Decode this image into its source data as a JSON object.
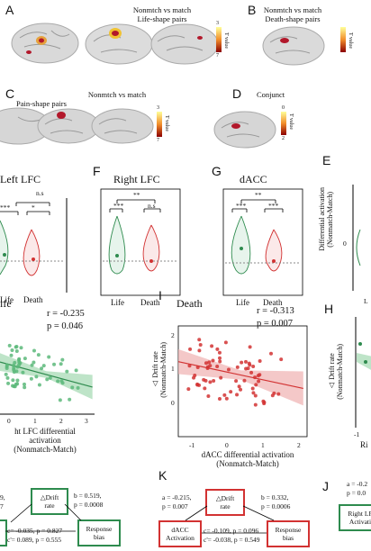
{
  "panels": {
    "A": {
      "label": "A",
      "title1": "Nonmtch vs match",
      "title2": "Life-shape pairs",
      "cb_top": "3",
      "cb_bot": "7",
      "cb_unit": "T value"
    },
    "B": {
      "label": "B",
      "title1": "Nonmtch vs match",
      "title2": "Death-shape pairs",
      "cb_unit": "T value"
    },
    "C": {
      "label": "C",
      "title1": "Nonmtch vs match",
      "title2": "Pain-shape pairs",
      "cb_top": "3",
      "cb_bot": "7",
      "cb_unit": "T value"
    },
    "D": {
      "label": "D",
      "title1": "Conjunct",
      "cb_top": "0",
      "cb_bot": "2",
      "cb_unit": "T value"
    },
    "Left": {
      "title": "Left LFC",
      "sig_top": "n.s",
      "sig_l": "***",
      "sig_r": "*",
      "x1": "Life",
      "x2": "Death"
    },
    "F": {
      "label": "F",
      "title": "Right LFC",
      "sig_top": "**",
      "sig_l": "***",
      "sig_r": "n.s",
      "x1": "Life",
      "x2": "Death"
    },
    "G": {
      "label": "G",
      "title": "dACC",
      "sig_top": "**",
      "sig_l": "***",
      "sig_r": "***",
      "x1": "Life",
      "x2": "Death"
    },
    "E": {
      "label": "E",
      "ylabel1": "Differential activation",
      "ylabel2": "(Nonmatch-Match)",
      "tick0": "0",
      "xlab": "L"
    },
    "Life": {
      "title": "ife",
      "r": "r = -0.235",
      "p": "p = 0.046",
      "xlab1": "ht LFC differential activation",
      "xlab2": "(Nonmatch-Match)",
      "xticks": [
        "0",
        "1",
        "2",
        "3"
      ]
    },
    "I": {
      "label": "I",
      "title": "Death",
      "r": "r = -0.313",
      "p": "p = 0.007",
      "ylab1": "△ Drift rate",
      "ylab2": "(Nonmatch-Match)",
      "xlab1": "dACC differential activation",
      "xlab2": "(Nonmatch-Match)",
      "xticks": [
        "-1",
        "0",
        "1",
        "2"
      ],
      "yticks": [
        "2",
        "1",
        "0"
      ]
    },
    "H": {
      "label": "H",
      "ylab1": "△ Drift rate",
      "ylab2": "(Nonmatch-Match)",
      "xlab": "Ri",
      "xtick": "-1"
    },
    "Jleft": {
      "line1": "9,",
      "line2": "7",
      "box_mid": "△Drift\nrate",
      "b": "b = 0.519,",
      "bp": "p = 0.0008",
      "box_right": "Response\nbias",
      "c1": "c= -0.035, p = 0.827",
      "c2": "c'= 0.089, p = 0.555"
    },
    "K": {
      "label": "K",
      "a": "a = -0.215,",
      "ap": "p = 0.007",
      "box_mid": "△Drift\nrate",
      "b": "b = 0.332,",
      "bp": "p = 0.0006",
      "box_left": "dACC\nActivation",
      "box_right": "Response\nbias",
      "c1": "c= -0.109, p = 0.096",
      "c2": "c'= -0.038, p = 0.549"
    },
    "J": {
      "label": "J",
      "a": "a = -0.2",
      "ap": "p = 0.0",
      "box_left": "Right LF\nActivati"
    }
  },
  "chart_data": [
    {
      "type": "scatter",
      "title": "Life",
      "r": -0.235,
      "p": 0.046,
      "xlabel": "Right LFC differential activation (Nonmatch-Match)",
      "ylabel": "△ Drift rate (Nonmatch-Match)",
      "xlim": [
        -1,
        3.5
      ],
      "regression": {
        "x0": -1,
        "y0": 0.35,
        "x1": 3.4,
        "y1": -0.25
      }
    },
    {
      "type": "scatter",
      "title": "Death",
      "r": -0.313,
      "p": 0.007,
      "xlabel": "dACC differential activation (Nonmatch-Match)",
      "ylabel": "△ Drift rate (Nonmatch-Match)",
      "xlim": [
        -1.2,
        2.2
      ],
      "ylim": [
        -0.9,
        2.2
      ],
      "regression": {
        "x0": -1.2,
        "y0": 1.2,
        "x1": 2.1,
        "y1": 0.45
      }
    }
  ]
}
